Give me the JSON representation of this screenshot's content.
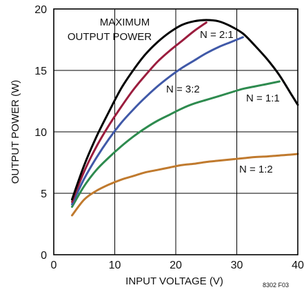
{
  "chart_data": {
    "type": "line",
    "xlabel": "INPUT VOLTAGE (V)",
    "ylabel": "OUTPUT POWER (W)",
    "xlim": [
      0,
      40
    ],
    "ylim": [
      0,
      20
    ],
    "x_ticks": [
      0,
      10,
      20,
      30,
      40
    ],
    "y_ticks": [
      0,
      5,
      10,
      15,
      20
    ],
    "grid": true,
    "figure_id": "8302 F03",
    "series": [
      {
        "name": "MAXIMUM OUTPUT POWER",
        "color": "#000000",
        "x": [
          3,
          5,
          7,
          9,
          11,
          13,
          15,
          17,
          19,
          21,
          23,
          25,
          27,
          29,
          31,
          33,
          35,
          37,
          39,
          40
        ],
        "y": [
          4.5,
          7.3,
          9.6,
          11.6,
          13.5,
          15.0,
          16.3,
          17.3,
          18.1,
          18.7,
          19.0,
          19.1,
          19.0,
          18.6,
          18.0,
          17.0,
          15.9,
          14.6,
          13.0,
          12.2
        ]
      },
      {
        "name": "N = 2:1",
        "color": "#9b1d3e",
        "x": [
          3,
          5,
          7,
          9,
          11,
          13,
          15,
          17,
          19,
          21,
          23,
          25
        ],
        "y": [
          4.3,
          6.8,
          8.8,
          10.5,
          12.0,
          13.4,
          14.6,
          15.7,
          16.6,
          17.4,
          18.2,
          18.9
        ]
      },
      {
        "name": "N = 3:2",
        "color": "#4059a8",
        "x": [
          3,
          5,
          7,
          9,
          11,
          13,
          15,
          17,
          19,
          21,
          23,
          25,
          27,
          29,
          31
        ],
        "y": [
          4.1,
          6.2,
          7.9,
          9.4,
          10.7,
          11.8,
          12.8,
          13.7,
          14.5,
          15.2,
          15.8,
          16.4,
          16.9,
          17.3,
          17.7
        ]
      },
      {
        "name": "N = 1:1",
        "color": "#2e8b4f",
        "x": [
          3,
          5,
          7,
          9,
          11,
          13,
          15,
          17,
          19,
          21,
          23,
          25,
          27,
          29,
          31,
          33,
          35,
          37
        ],
        "y": [
          3.9,
          5.6,
          6.9,
          7.9,
          8.8,
          9.6,
          10.3,
          10.9,
          11.4,
          11.9,
          12.3,
          12.6,
          12.9,
          13.2,
          13.5,
          13.7,
          13.9,
          14.1
        ]
      },
      {
        "name": "N = 1:2",
        "color": "#c07a2e",
        "x": [
          3,
          5,
          7,
          9,
          11,
          13,
          15,
          17,
          19,
          21,
          23,
          25,
          27,
          29,
          31,
          33,
          35,
          37,
          39,
          40
        ],
        "y": [
          3.2,
          4.5,
          5.2,
          5.7,
          6.1,
          6.4,
          6.7,
          6.9,
          7.1,
          7.3,
          7.4,
          7.55,
          7.65,
          7.75,
          7.85,
          7.95,
          8.0,
          8.08,
          8.15,
          8.2
        ]
      }
    ]
  }
}
